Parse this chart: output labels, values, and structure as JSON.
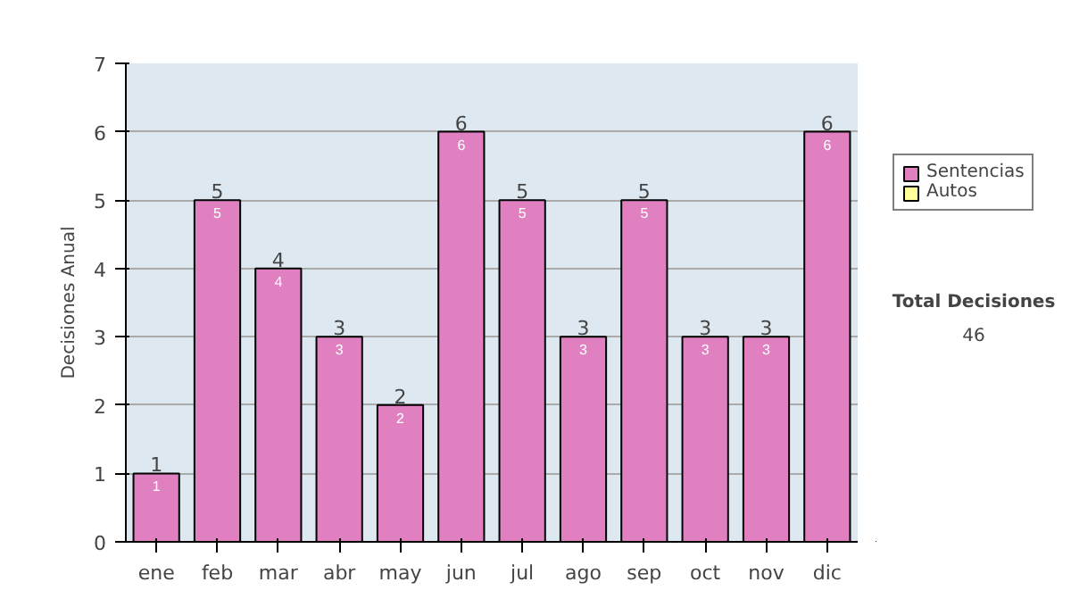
{
  "chart_data": {
    "type": "bar",
    "ylabel": "Decisiones Anual",
    "categories": [
      "ene",
      "feb",
      "mar",
      "abr",
      "may",
      "jun",
      "jul",
      "ago",
      "sep",
      "oct",
      "nov",
      "dic"
    ],
    "series": [
      {
        "name": "Sentencias",
        "color": "#e080c0",
        "values": [
          1,
          5,
          4,
          3,
          2,
          6,
          5,
          3,
          5,
          3,
          3,
          6
        ]
      },
      {
        "name": "Autos",
        "color": "#ffff99",
        "values": [
          null,
          null,
          null,
          null,
          null,
          null,
          null,
          null,
          null,
          null,
          null,
          null
        ]
      }
    ],
    "stacked": true,
    "data_labels": true,
    "totals": [
      "1",
      "5",
      "4",
      "3",
      "2",
      "6",
      "5",
      "3",
      "5",
      "3",
      "3",
      "6"
    ],
    "ylim": [
      0,
      7
    ],
    "yticks": [
      0,
      1,
      2,
      3,
      4,
      5,
      6,
      7
    ],
    "grid": "y",
    "legend": "right",
    "annotations": [
      "Total Decisiones",
      "46"
    ]
  }
}
